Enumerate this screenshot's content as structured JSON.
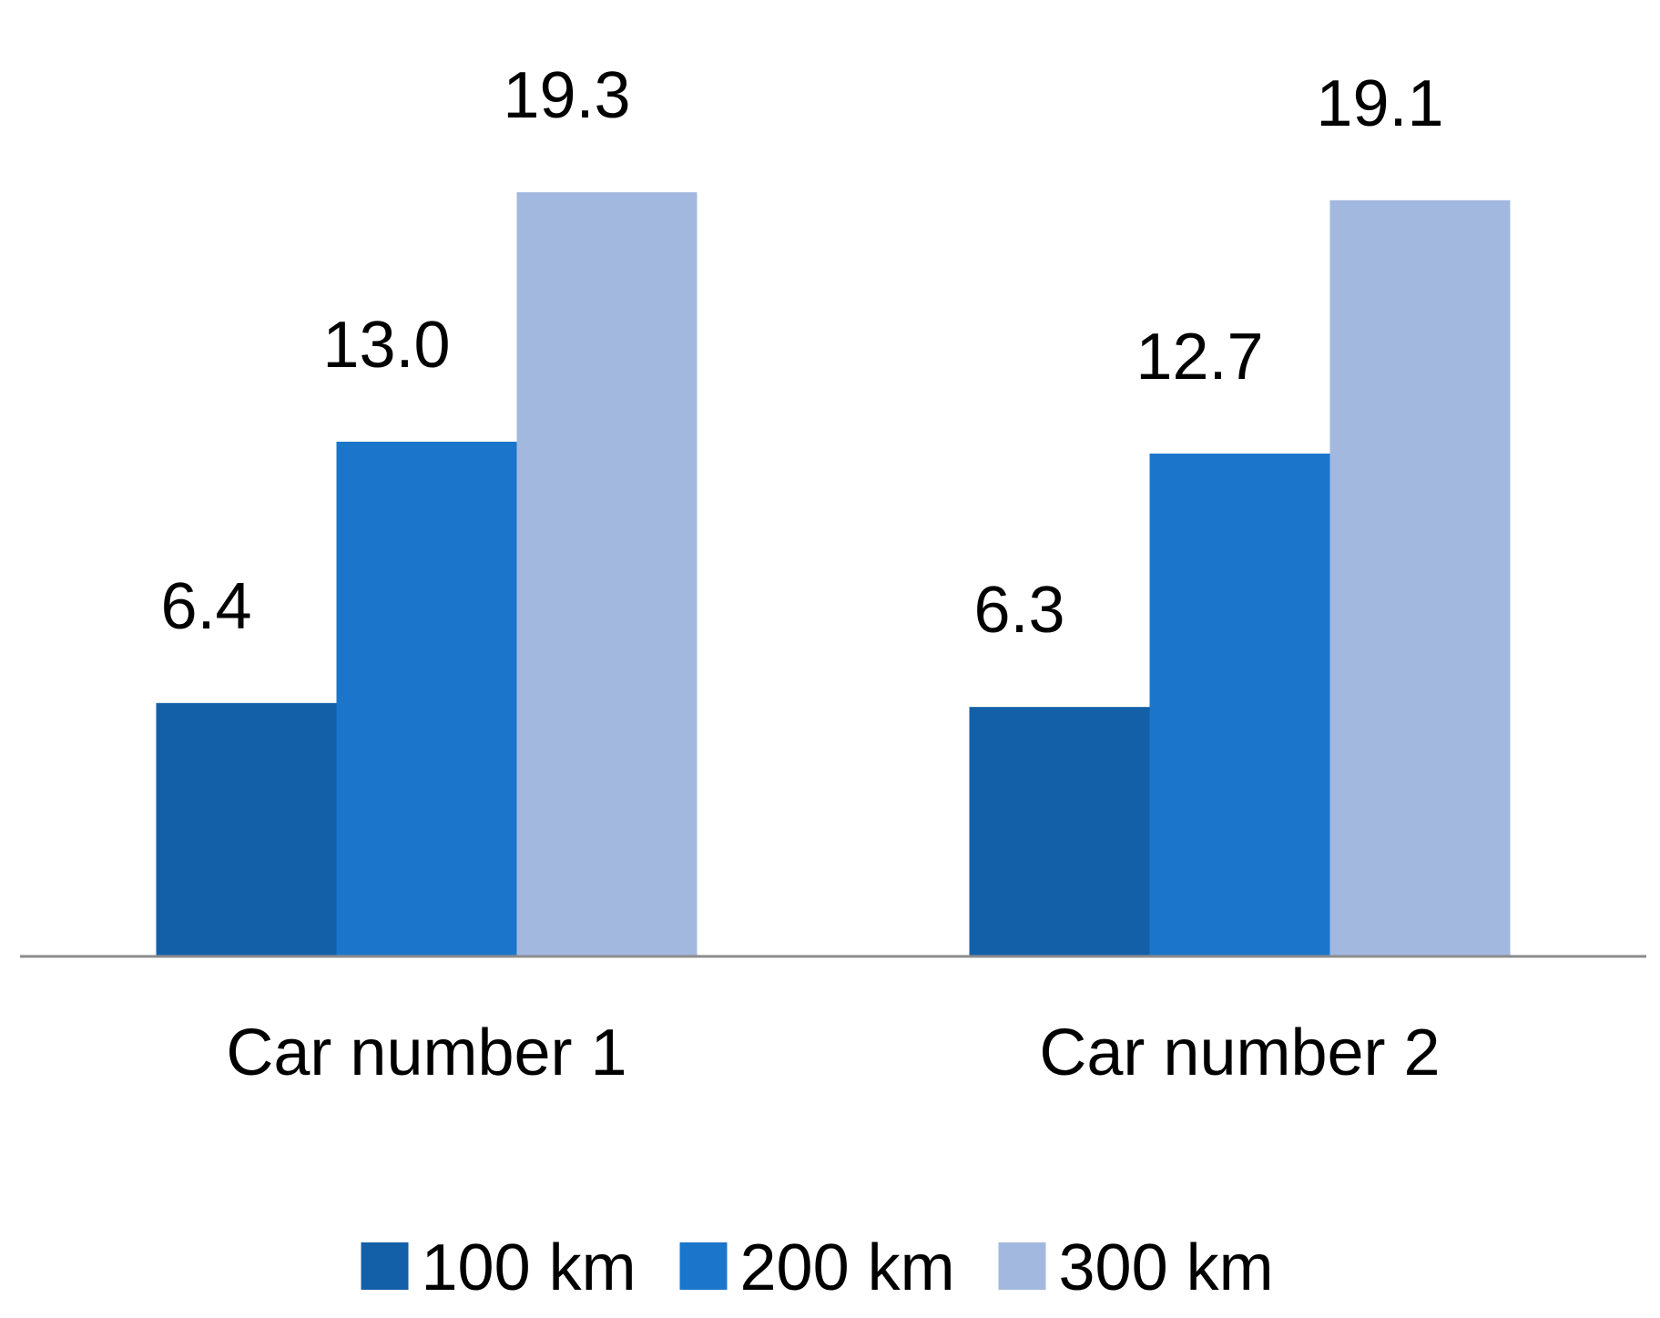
{
  "chart_data": {
    "type": "bar",
    "title": "",
    "xlabel": "",
    "ylabel": "",
    "categories": [
      "Car number 1",
      "Car number 2"
    ],
    "series": [
      {
        "name": "100 km",
        "color": "#1360a8",
        "values": [
          6.4,
          6.3
        ],
        "labels": [
          "6.4",
          "6.3"
        ]
      },
      {
        "name": "200 km",
        "color": "#1b76cb",
        "values": [
          13.0,
          12.7
        ],
        "labels": [
          "13.0",
          "12.7"
        ]
      },
      {
        "name": "300 km",
        "color": "#a3b8de",
        "values": [
          19.3,
          19.1
        ],
        "labels": [
          "19.3",
          "19.1"
        ]
      }
    ],
    "ylim": [
      0,
      22.5
    ],
    "grid": false,
    "legend_position": "bottom",
    "axis_color": "#8c8c8c"
  }
}
